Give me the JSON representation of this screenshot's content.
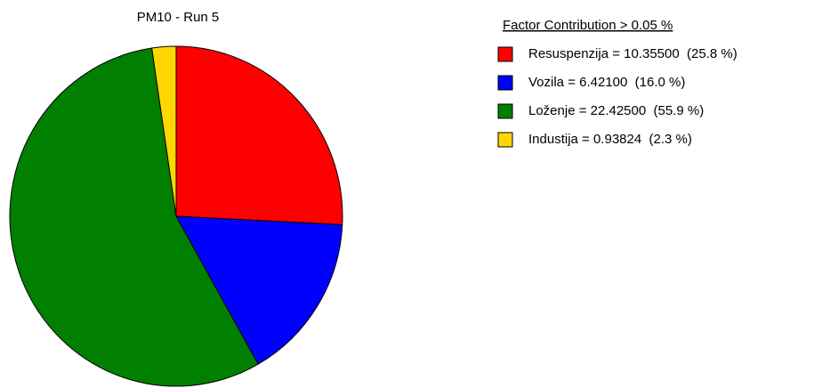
{
  "chart_data": {
    "type": "pie",
    "title": "PM10 - Run 5",
    "legend_title": "Factor Contribution > 0.05 %",
    "categories": [
      "Resuspenzija = 10.35500  (25.8 %)",
      "Vozila = 6.42100  (16.0 %)",
      "Loženje = 22.42500  (55.9 %)",
      "Industija = 0.93824  (2.3 %)"
    ],
    "values": [
      10.355,
      6.421,
      22.425,
      0.93824
    ],
    "colors": [
      "#ff0000",
      "#0000ff",
      "#007f00",
      "#ffd700"
    ],
    "legend": "right"
  }
}
